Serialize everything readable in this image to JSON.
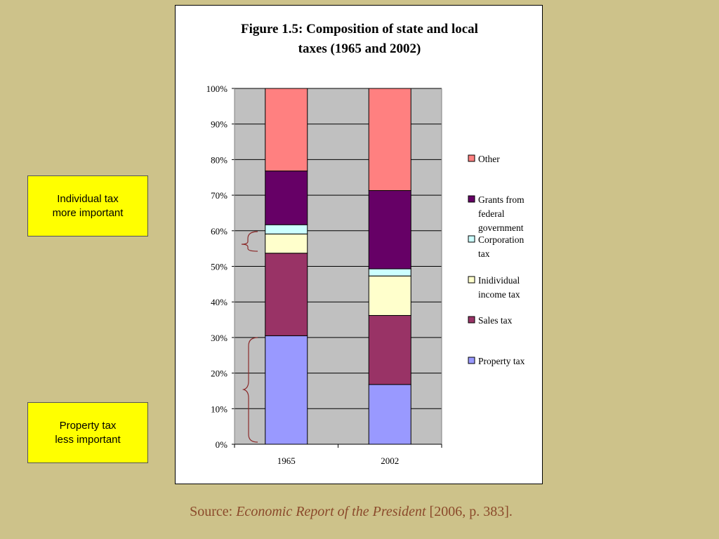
{
  "callouts": {
    "individual": {
      "line1": "Individual tax",
      "line2": "more important"
    },
    "property": {
      "line1": "Property tax",
      "line2": "less important"
    }
  },
  "source": {
    "prefix": "Source: ",
    "title": "Economic Report of the President",
    "suffix": " [2006, p. 383]."
  },
  "colors": {
    "background": "#cdc28a",
    "plot_area": "#c0c0c0",
    "callout": "#ffff00",
    "bracket": "#8b2a2a",
    "source_text": "#8b4a2b"
  },
  "chart_data": {
    "type": "bar",
    "stacked": true,
    "percent": true,
    "title_lines": [
      "Figure 1.5: Composition of state and local",
      "taxes (1965 and 2002)"
    ],
    "categories": [
      "1965",
      "2002"
    ],
    "ylim": [
      0,
      100
    ],
    "yticks": [
      "0%",
      "10%",
      "20%",
      "30%",
      "40%",
      "50%",
      "60%",
      "70%",
      "80%",
      "90%",
      "100%"
    ],
    "grid": true,
    "legend_position": "right",
    "series": [
      {
        "name": "Property tax",
        "values": [
          30.5,
          16.8
        ],
        "color": "#9999ff"
      },
      {
        "name": "Sales tax",
        "values": [
          23.2,
          19.4
        ],
        "color": "#993366"
      },
      {
        "name": "Inidividual income tax",
        "values": [
          5.4,
          11.1
        ],
        "color": "#ffffcc"
      },
      {
        "name": "Corporation tax",
        "values": [
          2.6,
          2.0
        ],
        "color": "#ccffff"
      },
      {
        "name": "Grants from federal government",
        "values": [
          15.1,
          22.0
        ],
        "color": "#660066"
      },
      {
        "name": "Other",
        "values": [
          23.2,
          28.7
        ],
        "color": "#ff8080"
      }
    ],
    "legend": [
      {
        "lines": [
          "Other"
        ],
        "color": "#ff8080"
      },
      {
        "lines": [
          "Grants from",
          "federal",
          "government"
        ],
        "color": "#660066"
      },
      {
        "lines": [
          "Corporation",
          "tax"
        ],
        "color": "#ccffff"
      },
      {
        "lines": [
          "Inidividual",
          "income tax"
        ],
        "color": "#ffffcc"
      },
      {
        "lines": [
          "Sales tax"
        ],
        "color": "#993366"
      },
      {
        "lines": [
          "Property tax"
        ],
        "color": "#9999ff"
      }
    ]
  }
}
